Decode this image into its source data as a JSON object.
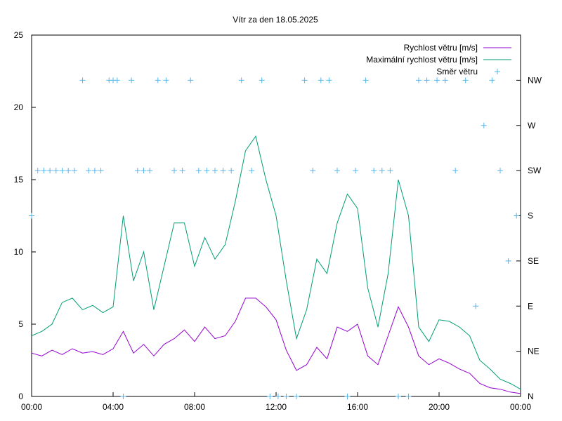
{
  "chart_data": {
    "type": "line",
    "title": "Vítr za den 18.05.2025",
    "x_ticks": [
      "00:00",
      "04:00",
      "08:00",
      "12:00",
      "16:00",
      "20:00",
      "00:00"
    ],
    "xlim_hours": [
      0,
      24
    ],
    "y_left": {
      "ylim": [
        0,
        25
      ],
      "ticks": [
        "0",
        "5",
        "10",
        "15",
        "20",
        "25"
      ]
    },
    "y_right": {
      "ticks": [
        "N",
        "NE",
        "E",
        "SE",
        "S",
        "SW",
        "W",
        "NW"
      ]
    },
    "legend_position": "top-right",
    "grid": false,
    "series": [
      {
        "name": "Rychlost větru [m/s]",
        "color": "#9400d3",
        "axis": "left",
        "x": [
          0,
          0.5,
          1,
          1.5,
          2,
          2.5,
          3,
          3.5,
          4,
          4.5,
          5,
          5.5,
          6,
          6.5,
          7,
          7.5,
          8,
          8.5,
          9,
          9.5,
          10,
          10.5,
          11,
          11.5,
          12,
          12.5,
          13,
          13.5,
          14,
          14.5,
          15,
          15.5,
          16,
          16.5,
          17,
          17.5,
          18,
          18.5,
          19,
          19.5,
          20,
          20.5,
          21,
          21.5,
          22,
          22.5,
          23,
          23.5,
          24
        ],
        "values": [
          3.0,
          2.8,
          3.2,
          2.9,
          3.3,
          3.0,
          3.1,
          2.9,
          3.3,
          4.5,
          3.0,
          3.6,
          2.8,
          3.6,
          4.0,
          4.6,
          3.8,
          4.8,
          4.0,
          4.2,
          5.2,
          6.8,
          6.8,
          6.2,
          5.3,
          3.2,
          1.8,
          2.2,
          3.4,
          2.6,
          4.8,
          4.5,
          5.0,
          2.8,
          2.2,
          4.2,
          6.2,
          4.8,
          2.8,
          2.2,
          2.6,
          2.3,
          1.9,
          1.6,
          0.9,
          0.6,
          0.5,
          0.3,
          0.2
        ]
      },
      {
        "name": "Maximální rychlost větru [m/s]",
        "color": "#009e73",
        "axis": "left",
        "x": [
          0,
          0.5,
          1,
          1.5,
          2,
          2.5,
          3,
          3.5,
          4,
          4.5,
          5,
          5.5,
          6,
          6.5,
          7,
          7.5,
          8,
          8.5,
          9,
          9.5,
          10,
          10.5,
          11,
          11.5,
          12,
          12.5,
          13,
          13.5,
          14,
          14.5,
          15,
          15.5,
          16,
          16.5,
          17,
          17.5,
          18,
          18.5,
          19,
          19.5,
          20,
          20.5,
          21,
          21.5,
          22,
          22.5,
          23,
          23.5,
          24
        ],
        "values": [
          4.2,
          4.5,
          5.0,
          6.5,
          6.8,
          6.0,
          6.3,
          5.8,
          6.2,
          12.5,
          8.0,
          10.0,
          6.0,
          9.0,
          12.0,
          12.0,
          9.0,
          11.0,
          9.5,
          10.5,
          13.5,
          17.0,
          18.0,
          15.0,
          12.5,
          8.0,
          4.0,
          6.0,
          9.5,
          8.5,
          12.0,
          14.0,
          13.0,
          7.5,
          4.8,
          8.5,
          15.0,
          12.5,
          4.8,
          3.8,
          5.3,
          5.2,
          4.8,
          4.2,
          2.5,
          1.9,
          1.2,
          0.9,
          0.5
        ]
      },
      {
        "name": "Směr větru",
        "color": "#56b4e9",
        "axis": "right",
        "type": "scatter",
        "x": [
          0,
          0.3,
          0.6,
          0.9,
          1.2,
          1.5,
          1.8,
          2.1,
          2.5,
          2.8,
          3.1,
          3.4,
          3.8,
          4.0,
          4.2,
          4.5,
          4.9,
          5.2,
          5.5,
          5.8,
          6.2,
          6.6,
          7.0,
          7.4,
          7.8,
          8.2,
          8.6,
          9.0,
          9.4,
          9.8,
          10.3,
          10.8,
          11.3,
          11.7,
          12.1,
          12.5,
          13.0,
          13.4,
          13.8,
          14.2,
          14.6,
          15.0,
          15.5,
          15.9,
          16.4,
          16.8,
          17.2,
          17.6,
          18.0,
          18.5,
          19.0,
          19.4,
          19.9,
          20.3,
          20.8,
          21.3,
          21.8,
          22.2,
          22.6,
          23.0,
          23.4,
          23.8
        ],
        "values": [
          "S",
          "SW",
          "SW",
          "SW",
          "SW",
          "SW",
          "SW",
          "SW",
          "NW",
          "SW",
          "SW",
          "SW",
          "NW",
          "NW",
          "NW",
          "N",
          "NW",
          "SW",
          "SW",
          "SW",
          "NW",
          "NW",
          "SW",
          "SW",
          "NW",
          "SW",
          "SW",
          "SW",
          "SW",
          "SW",
          "NW",
          "SW",
          "NW",
          "N",
          "N",
          "N",
          "N",
          "NW",
          "SW",
          "NW",
          "NW",
          "SW",
          "N",
          "SW",
          "NW",
          "SW",
          "SW",
          "SW",
          "N",
          "N",
          "NW",
          "NW",
          "NW",
          "NW",
          "SW",
          "NW",
          "E",
          "W",
          "NW",
          "SW",
          "SE",
          "S"
        ]
      }
    ]
  }
}
